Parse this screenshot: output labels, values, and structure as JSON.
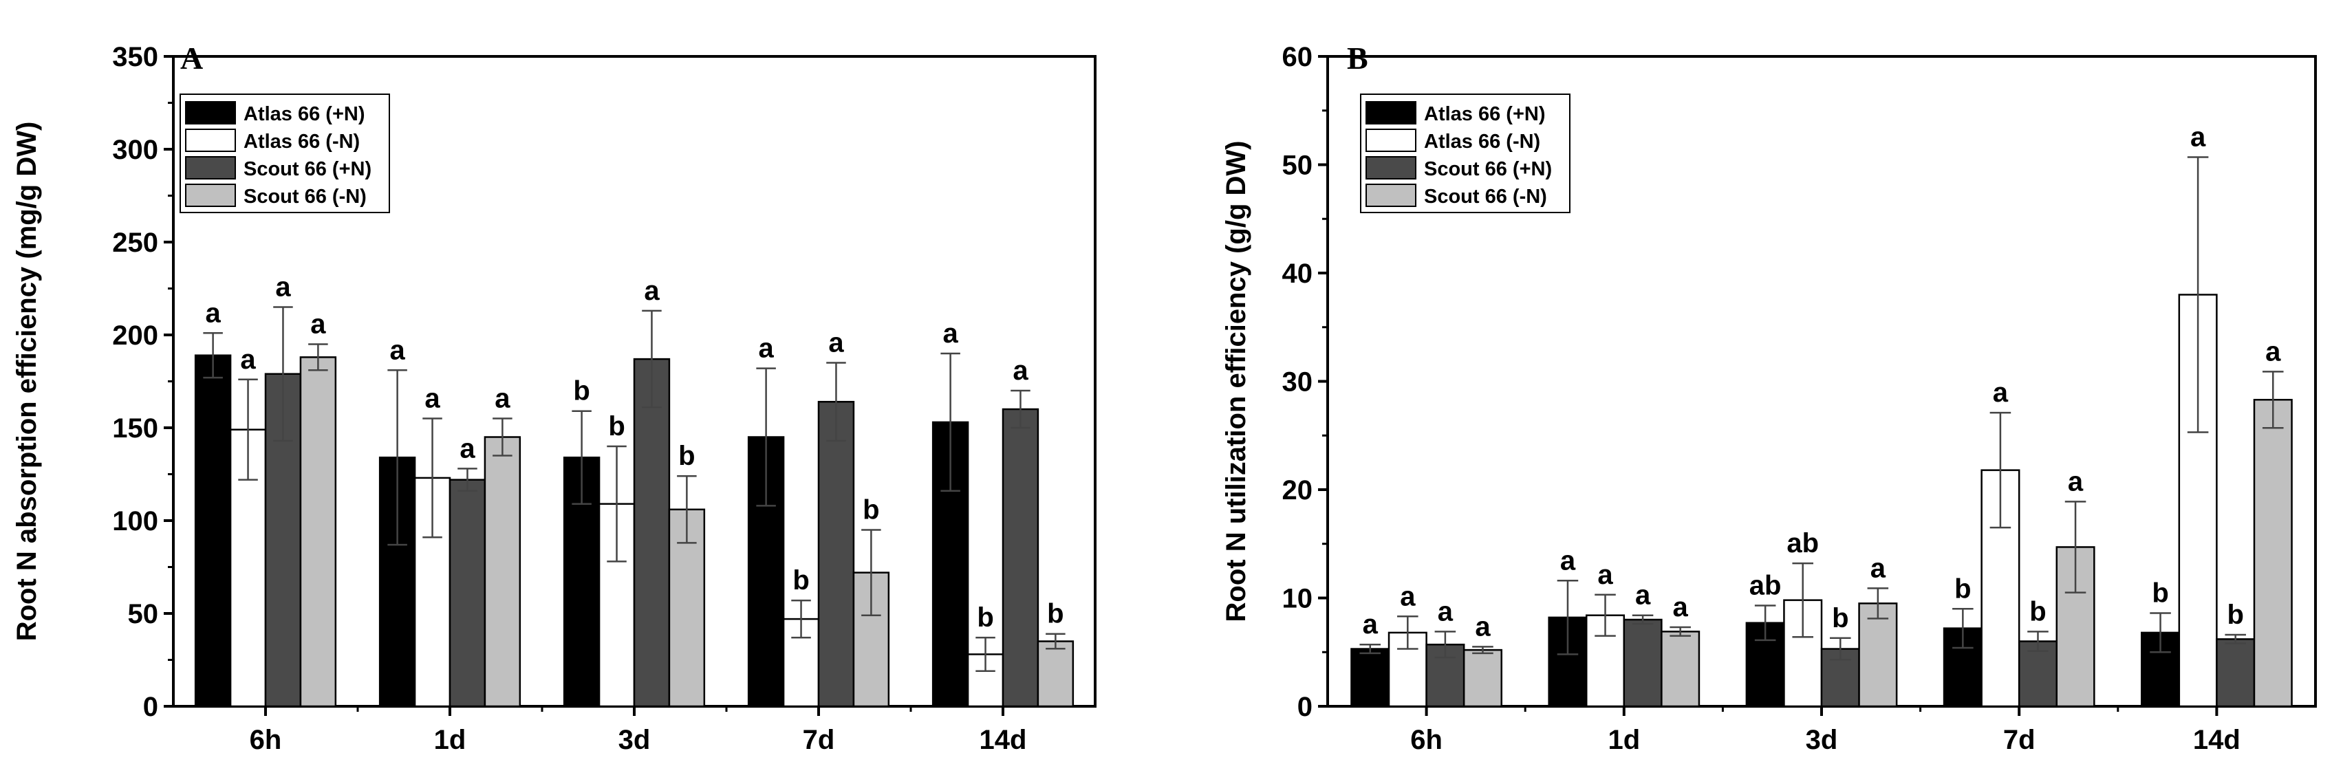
{
  "chart_data": [
    {
      "type": "bar",
      "panel_label": "A",
      "categories": [
        "6h",
        "1d",
        "3d",
        "7d",
        "14d"
      ],
      "ylabel": "Root N absorption efficiency (mg/g DW)",
      "xlabel": "",
      "ylim": [
        0,
        350
      ],
      "yticks": [
        0,
        50,
        100,
        150,
        200,
        250,
        300,
        350
      ],
      "grid": false,
      "legend_position": "top-left",
      "series": [
        {
          "name": "Atlas 66 (+N)",
          "color": "#000000",
          "values": [
            189,
            134,
            134,
            145,
            153
          ],
          "errors": [
            12,
            47,
            25,
            37,
            37
          ],
          "labels": [
            "a",
            "a",
            "b",
            "a",
            "a"
          ]
        },
        {
          "name": "Atlas 66 (-N)",
          "color": "#ffffff",
          "values": [
            149,
            123,
            109,
            47,
            28
          ],
          "errors": [
            27,
            32,
            31,
            10,
            9
          ],
          "labels": [
            "a",
            "a",
            "b",
            "b",
            "b"
          ]
        },
        {
          "name": "Scout 66 (+N)",
          "color": "#4a4a4a",
          "values": [
            179,
            122,
            187,
            164,
            160
          ],
          "errors": [
            36,
            6,
            26,
            21,
            10
          ],
          "labels": [
            "a",
            "a",
            "a",
            "a",
            "a"
          ]
        },
        {
          "name": "Scout 66 (-N)",
          "color": "#c0c0c0",
          "values": [
            188,
            145,
            106,
            72,
            35
          ],
          "errors": [
            7,
            10,
            18,
            23,
            4
          ],
          "labels": [
            "a",
            "a",
            "b",
            "b",
            "b"
          ]
        }
      ]
    },
    {
      "type": "bar",
      "panel_label": "B",
      "categories": [
        "6h",
        "1d",
        "3d",
        "7d",
        "14d"
      ],
      "ylabel": "Root N utilization efficiency (g/g DW)",
      "xlabel": "",
      "ylim": [
        0,
        60
      ],
      "yticks": [
        0,
        10,
        20,
        30,
        40,
        50,
        60
      ],
      "grid": false,
      "legend_position": "top-left",
      "series": [
        {
          "name": "Atlas 66 (+N)",
          "color": "#000000",
          "values": [
            5.3,
            8.2,
            7.7,
            7.2,
            6.8
          ],
          "errors": [
            0.4,
            3.4,
            1.6,
            1.8,
            1.8
          ],
          "labels": [
            "a",
            "a",
            "ab",
            "b",
            "b"
          ]
        },
        {
          "name": "Atlas 66 (-N)",
          "color": "#ffffff",
          "values": [
            6.8,
            8.4,
            9.8,
            21.8,
            38.0
          ],
          "errors": [
            1.5,
            1.9,
            3.4,
            5.3,
            12.7
          ],
          "labels": [
            "a",
            "a",
            "ab",
            "a",
            "a"
          ]
        },
        {
          "name": "Scout 66 (+N)",
          "color": "#4a4a4a",
          "values": [
            5.7,
            8.0,
            5.3,
            6.0,
            6.2
          ],
          "errors": [
            1.2,
            0.4,
            1.0,
            0.9,
            0.4
          ],
          "labels": [
            "a",
            "a",
            "b",
            "b",
            "b"
          ]
        },
        {
          "name": "Scout 66 (-N)",
          "color": "#c0c0c0",
          "values": [
            5.2,
            6.9,
            9.5,
            14.7,
            28.3
          ],
          "errors": [
            0.3,
            0.4,
            1.4,
            4.2,
            2.6
          ],
          "labels": [
            "a",
            "a",
            "a",
            "a",
            "a"
          ]
        }
      ]
    }
  ]
}
